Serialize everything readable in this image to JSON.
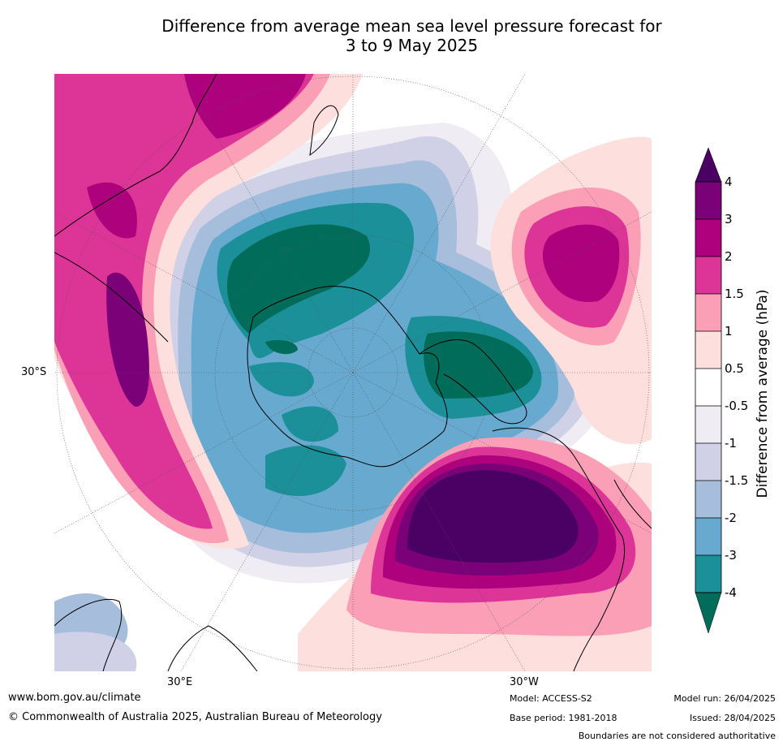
{
  "title": {
    "line1": "Difference from average mean sea level pressure forecast for",
    "line2": "3 to 9 May 2025"
  },
  "map": {
    "projection": "south-polar-stereographic",
    "graticule_labels": {
      "lat_left": "30°S",
      "lon_bottom_left": "30°E",
      "lon_bottom_right": "30°W"
    }
  },
  "colorbar": {
    "label": "Difference from average (hPa)",
    "ticks": [
      "4",
      "3",
      "2",
      "1.5",
      "1",
      "0.5",
      "-0.5",
      "-1",
      "-1.5",
      "-2",
      "-3",
      "-4"
    ],
    "colors": {
      "above_4": "#4b0064",
      "3_to_4": "#7a0177",
      "2_to_3": "#ae017e",
      "1.5_to_2": "#dd3497",
      "1_to_1.5": "#fa9fb5",
      "0.5_to_1": "#fde0dd",
      "-0.5_to_0.5": "#ffffff",
      "-1_to_-0.5": "#f0ecf3",
      "-1.5_to_-1": "#d0d1e6",
      "-2_to_-1.5": "#a6bddb",
      "-3_to_-2": "#67a9cf",
      "-4_to_-3": "#1c9099",
      "below_-4": "#016c59"
    }
  },
  "footer": {
    "url": "www.bom.gov.au/climate",
    "copyright": "© Commonwealth of Australia 2025, Australian Bureau of Meteorology",
    "model": "Model: ACCESS-S2",
    "base_period": "Base period: 1981-2018",
    "model_run": "Model run: 26/04/2025",
    "issued": "Issued: 28/04/2025",
    "disclaimer": "Boundaries are not considered authoritative"
  }
}
